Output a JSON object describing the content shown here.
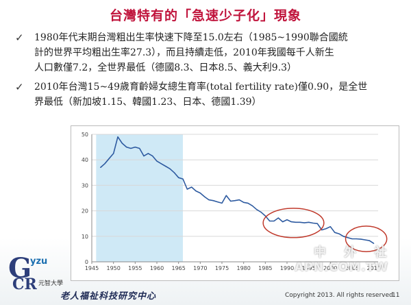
{
  "title": "台灣特有的「急速少子化」現象",
  "bullets": [
    {
      "lines": [
        "1980年代末期台灣粗出生率快速下降至15.0左右（1985~1990聯合國統",
        "計的世界平均粗出生率27.3），而且持續走低，2010年我國每千人新生",
        "人口數僅7.2，全世界最低（德國8.3、日本8.5、義大利9.3）"
      ]
    },
    {
      "lines": [
        "2010年台灣15~49歲育齡婦女總生育率(total fertility rate)僅0.90，是全世",
        "界最低（新加坡1.15、韓國1.23、日本、德國1.39）"
      ]
    }
  ],
  "check_glyph": "✓",
  "chart_data": {
    "type": "line",
    "title": "",
    "xlabel": "",
    "ylabel": "",
    "xlim": [
      1945,
      2011
    ],
    "ylim": [
      0,
      50
    ],
    "x_ticks": [
      "1945",
      "1950",
      "1955",
      "1960",
      "1965",
      "1970",
      "1975",
      "1980",
      "1985",
      "1990",
      "1995",
      "2000",
      "2005",
      "2010"
    ],
    "y_ticks": [
      "0",
      "10",
      "20",
      "30",
      "40",
      "50"
    ],
    "grid": "horizontal",
    "highlight_band": [
      1946,
      1966
    ],
    "highlight_color": "#cfe9f6",
    "line_color": "#2d5aa0",
    "ellipse_color": "#c0392b",
    "ellipses": [
      {
        "x_range": [
          1984.5,
          1998.5
        ],
        "y_range": [
          9.5,
          21
        ]
      },
      {
        "x_range": [
          2003.5,
          2013
        ],
        "y_range": [
          4,
          14
        ]
      }
    ],
    "x": [
      1947,
      1948,
      1949,
      1950,
      1951,
      1952,
      1953,
      1954,
      1955,
      1956,
      1957,
      1958,
      1959,
      1960,
      1961,
      1962,
      1963,
      1964,
      1965,
      1966,
      1967,
      1968,
      1969,
      1970,
      1971,
      1972,
      1973,
      1974,
      1975,
      1976,
      1977,
      1978,
      1979,
      1980,
      1981,
      1982,
      1983,
      1984,
      1985,
      1986,
      1987,
      1988,
      1989,
      1990,
      1991,
      1992,
      1993,
      1994,
      1995,
      1996,
      1997,
      1998,
      1999,
      2000,
      2001,
      2002,
      2003,
      2004,
      2005,
      2006,
      2007,
      2008,
      2009,
      2010
    ],
    "values": [
      37.0,
      38.5,
      40.5,
      42.5,
      49.0,
      46.5,
      45.0,
      44.5,
      45.0,
      44.5,
      41.5,
      42.5,
      41.5,
      39.5,
      38.5,
      37.5,
      36.5,
      35.0,
      33.0,
      32.5,
      28.5,
      29.3,
      27.8,
      27.0,
      25.5,
      24.3,
      24.0,
      23.5,
      23.0,
      26.0,
      23.8,
      24.0,
      24.3,
      23.3,
      23.0,
      22.0,
      20.5,
      19.5,
      18.0,
      16.0,
      16.0,
      17.2,
      15.7,
      16.5,
      15.7,
      15.5,
      15.5,
      15.3,
      15.5,
      15.2,
      15.0,
      12.5,
      13.0,
      13.8,
      11.5,
      11.0,
      10.0,
      9.5,
      9.0,
      9.0,
      8.9,
      8.6,
      8.3,
      7.2
    ]
  },
  "logo": {
    "mark_g": "G",
    "mark_yzu": "yzu",
    "mark_cr": "CR",
    "school": "元智大學"
  },
  "footer": {
    "center_name": "老人福祉科技研究中心",
    "copyright": "Copyright 2013. All rights reserved.",
    "page": "11"
  },
  "watermark": {
    "top": "中 外 社",
    "bottom": "APN.COM.TW"
  }
}
